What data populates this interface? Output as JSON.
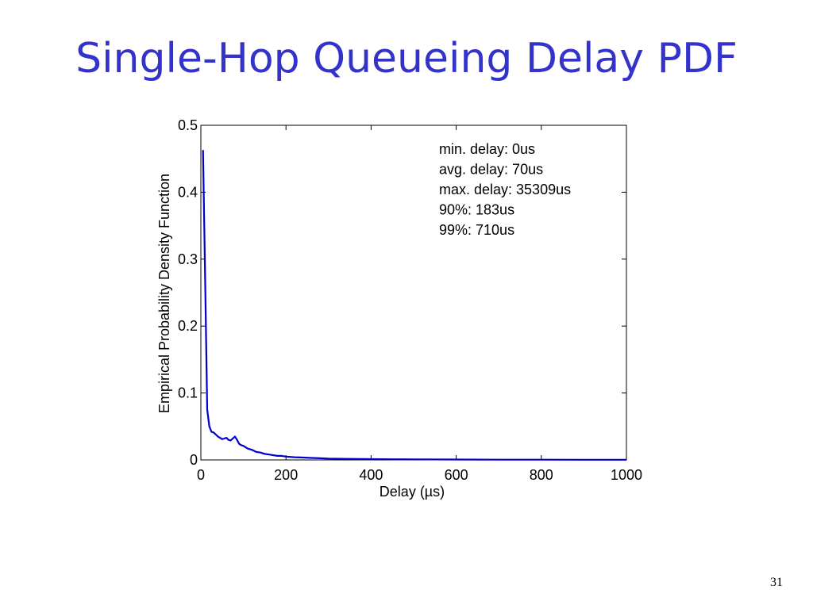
{
  "slide": {
    "title": "Single-Hop Queueing Delay PDF",
    "page_number": "31"
  },
  "colors": {
    "title": "#3333cc",
    "series": "#0000cc"
  },
  "chart_data": {
    "type": "line",
    "title": "",
    "xlabel": "Delay (µs)",
    "ylabel": "Empirical Probability Density Function",
    "xlim": [
      0,
      1000
    ],
    "ylim": [
      0,
      0.5
    ],
    "xticks": [
      0,
      200,
      400,
      600,
      800,
      1000
    ],
    "xtick_labels": [
      "0",
      "200",
      "400",
      "600",
      "800",
      "1000"
    ],
    "yticks": [
      0,
      0.1,
      0.2,
      0.3,
      0.4,
      0.5
    ],
    "ytick_labels": [
      "0",
      "0.1",
      "0.2",
      "0.3",
      "0.4",
      "0.5"
    ],
    "grid": false,
    "annotations": [
      "min. delay: 0us",
      "avg. delay: 70us",
      "max. delay: 35309us",
      "90%: 183us",
      "99%: 710us"
    ],
    "series": [
      {
        "x": [
          5,
          10,
          15,
          20,
          25,
          30,
          35,
          40,
          45,
          50,
          55,
          60,
          65,
          70,
          75,
          80,
          85,
          90,
          95,
          100,
          110,
          120,
          130,
          140,
          150,
          160,
          170,
          180,
          190,
          200,
          220,
          240,
          260,
          280,
          300,
          350,
          400,
          450,
          500,
          600,
          700,
          800,
          900,
          1000
        ],
        "y": [
          0.463,
          0.27,
          0.075,
          0.05,
          0.042,
          0.041,
          0.038,
          0.035,
          0.033,
          0.031,
          0.032,
          0.033,
          0.03,
          0.029,
          0.032,
          0.035,
          0.03,
          0.024,
          0.022,
          0.021,
          0.017,
          0.015,
          0.012,
          0.011,
          0.009,
          0.008,
          0.007,
          0.006,
          0.006,
          0.005,
          0.004,
          0.0035,
          0.003,
          0.0025,
          0.002,
          0.0015,
          0.0012,
          0.001,
          0.0008,
          0.0006,
          0.0004,
          0.0003,
          0.0002,
          0.0002
        ]
      }
    ]
  }
}
